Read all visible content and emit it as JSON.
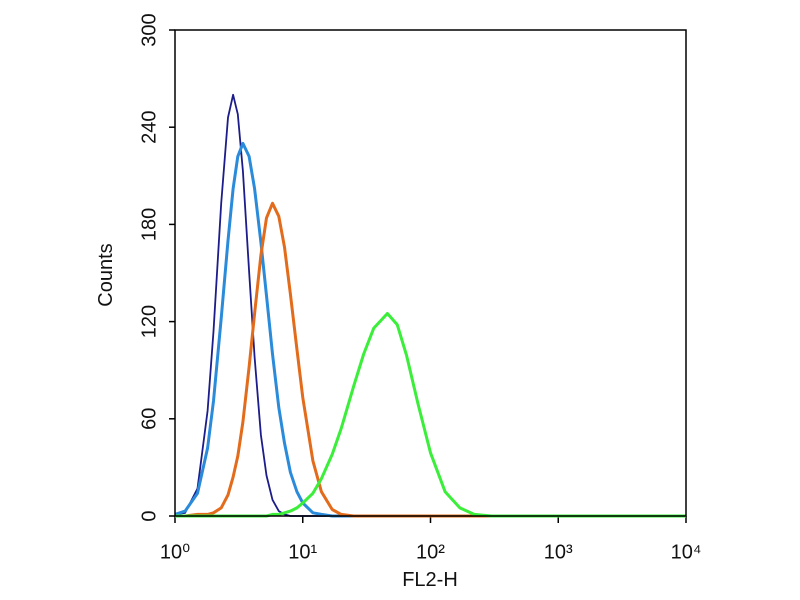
{
  "chart_data": {
    "type": "line",
    "x_label": "FL2-H",
    "y_label": "Counts",
    "log_x": true,
    "xlim": [
      1,
      10000
    ],
    "ylim": [
      0,
      300
    ],
    "xticks": [
      {
        "value": 1,
        "label": "10⁰"
      },
      {
        "value": 10,
        "label": "10¹"
      },
      {
        "value": 100,
        "label": "10²"
      },
      {
        "value": 1000,
        "label": "10³"
      },
      {
        "value": 10000,
        "label": "10⁴"
      }
    ],
    "yticks": [
      0,
      60,
      120,
      180,
      240,
      300
    ],
    "x": [
      1,
      1.2,
      1.5,
      1.8,
      2,
      2.3,
      2.6,
      2.85,
      3.1,
      3.4,
      3.8,
      4.2,
      4.7,
      5.2,
      5.8,
      6.5,
      7.2,
      8,
      9,
      10,
      12,
      14,
      17,
      20,
      25,
      30,
      36,
      46,
      55,
      65,
      80,
      100,
      130,
      170,
      220,
      300,
      400,
      1000,
      10000
    ],
    "series": [
      {
        "color": "#1c1c8a",
        "values": [
          1,
          2,
          17,
          65,
          114,
          193,
          246,
          260,
          248,
          213,
          151,
          98,
          50,
          25,
          10,
          3,
          1,
          0,
          0,
          0,
          0,
          0,
          0,
          0,
          0,
          0,
          0,
          0,
          0,
          0,
          0,
          0,
          0,
          0,
          0,
          0,
          0,
          0,
          0
        ]
      },
      {
        "color": "#2b8bdb",
        "values": [
          1,
          3,
          14,
          42,
          71,
          122,
          170,
          202,
          222,
          230,
          222,
          202,
          169,
          136,
          100,
          67,
          45,
          27,
          15,
          8,
          2,
          1,
          0,
          0,
          0,
          0,
          0,
          0,
          0,
          0,
          0,
          0,
          0,
          0,
          0,
          0,
          0,
          0,
          0
        ]
      },
      {
        "color": "#e36b1c",
        "values": [
          0,
          0,
          1,
          1,
          2,
          5,
          13,
          24,
          37,
          58,
          92,
          125,
          161,
          184,
          193,
          185,
          166,
          137,
          103,
          73,
          34,
          15,
          4,
          1,
          0,
          0,
          0,
          0,
          0,
          0,
          0,
          0,
          0,
          0,
          0,
          0,
          0,
          0,
          0
        ]
      },
      {
        "color": "#3aee3a",
        "values": [
          0,
          0,
          0,
          0,
          0,
          0,
          0,
          0,
          0,
          0,
          0,
          0,
          0,
          0,
          1,
          1,
          2,
          3,
          5,
          8,
          14,
          23,
          38,
          54,
          80,
          100,
          116,
          125,
          118,
          99,
          69,
          39,
          15,
          5,
          1,
          0,
          0,
          0,
          0
        ]
      }
    ]
  }
}
